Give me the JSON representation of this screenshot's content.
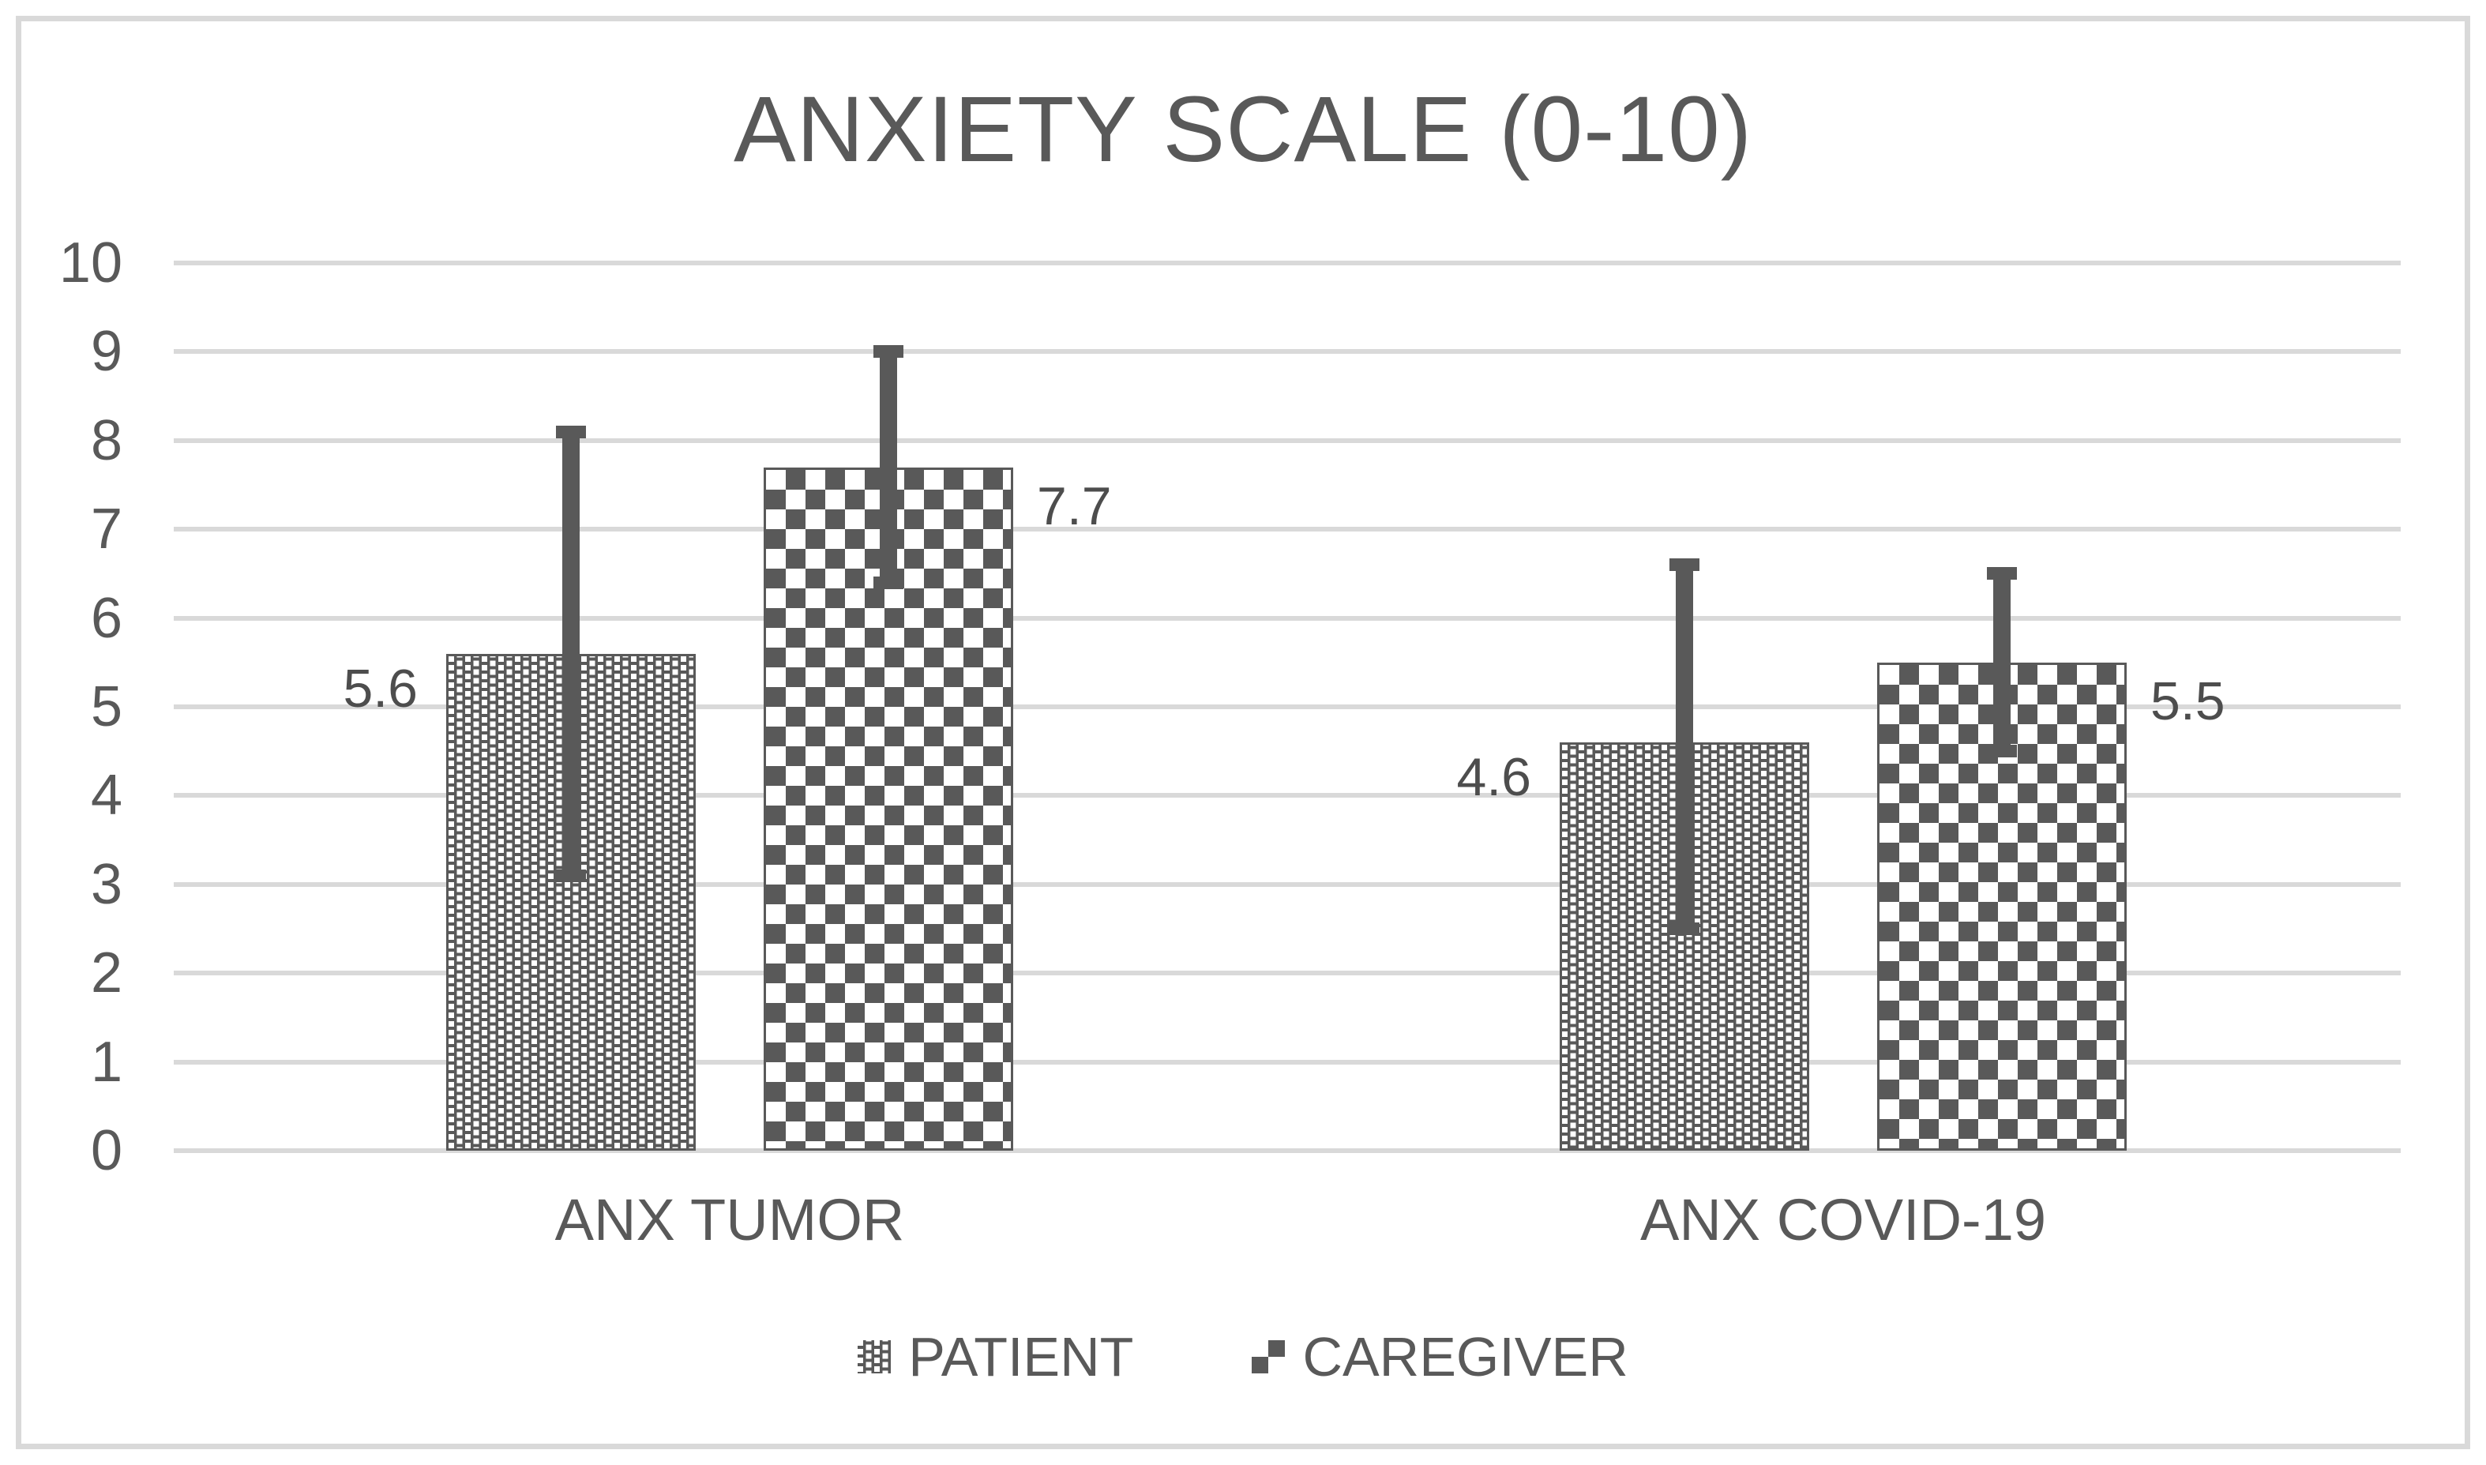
{
  "chart_data": {
    "type": "bar",
    "title": "ANXIETY SCALE (0-10)",
    "categories": [
      "ANX TUMOR",
      "ANX COVID-19"
    ],
    "series": [
      {
        "name": "PATIENT",
        "pattern": "dotted-grid",
        "values": [
          5.6,
          4.6
        ],
        "labels": [
          "5.6",
          "4.6"
        ],
        "label_side": "left",
        "error_bars": [
          {
            "lower": 3.1,
            "upper": 8.1
          },
          {
            "lower": 2.5,
            "upper": 6.6
          }
        ]
      },
      {
        "name": "CAREGIVER",
        "pattern": "checkerboard",
        "values": [
          7.7,
          5.5
        ],
        "labels": [
          "7.7",
          "5.5"
        ],
        "label_side": "right",
        "error_bars": [
          {
            "lower": 6.4,
            "upper": 9.0
          },
          {
            "lower": 4.5,
            "upper": 6.5
          }
        ]
      }
    ],
    "ylabel": "",
    "xlabel": "",
    "ylim": [
      0,
      10
    ],
    "yticks": [
      0,
      1,
      2,
      3,
      4,
      5,
      6,
      7,
      8,
      9,
      10
    ],
    "grid": true,
    "legend_position": "bottom",
    "colors": {
      "bar_fill": "#595959",
      "pattern_background": "#ffffff",
      "gridline": "#d9d9d9",
      "frame_border": "#d9d9d9",
      "text": "#595959",
      "data_label_text": "#4d4d4d",
      "error_bar": "#595959"
    }
  }
}
